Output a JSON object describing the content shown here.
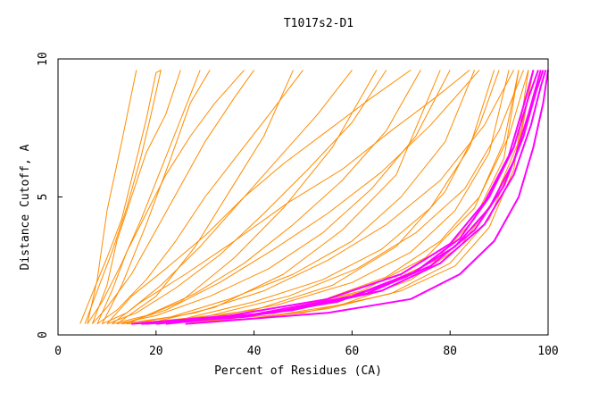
{
  "chart_data": {
    "type": "line",
    "title": "T1017s2-D1",
    "xlabel": "Percent of Residues (CA)",
    "ylabel": "Distance Cutoff, A",
    "xlim": [
      0,
      100
    ],
    "ylim": [
      0,
      10
    ],
    "x_ticks": [
      "0",
      "20",
      "40",
      "60",
      "80",
      "100"
    ],
    "y_ticks": [
      "0",
      "5",
      "10"
    ],
    "grid": false,
    "legend": "none",
    "colors": {
      "orange": "#ff8c00",
      "magenta": "#ff00ff",
      "frame": "#000000"
    },
    "orange_series": [
      {
        "points": [
          [
            4.5,
            0.4
          ],
          [
            7,
            1.5
          ],
          [
            10,
            2.8
          ],
          [
            13,
            4.2
          ],
          [
            15.5,
            6
          ],
          [
            18,
            7.8
          ],
          [
            20,
            9.5
          ],
          [
            21,
            9.6
          ]
        ]
      },
      {
        "points": [
          [
            5.5,
            0.4
          ],
          [
            8,
            1.6
          ],
          [
            11,
            3
          ],
          [
            14,
            4.6
          ],
          [
            17,
            6.5
          ],
          [
            19,
            8
          ],
          [
            21,
            9.6
          ]
        ]
      },
      {
        "points": [
          [
            6,
            0.4
          ],
          [
            9,
            1.2
          ],
          [
            13,
            2.6
          ],
          [
            17,
            4.2
          ],
          [
            21,
            6
          ],
          [
            25,
            7.8
          ],
          [
            29,
            9.6
          ]
        ]
      },
      {
        "points": [
          [
            7,
            0.4
          ],
          [
            10,
            1
          ],
          [
            15,
            2.2
          ],
          [
            20,
            3.8
          ],
          [
            25,
            5.4
          ],
          [
            30,
            7
          ],
          [
            36,
            8.6
          ],
          [
            40,
            9.6
          ]
        ]
      },
      {
        "points": [
          [
            8,
            0.4
          ],
          [
            12,
            0.9
          ],
          [
            18,
            2
          ],
          [
            24,
            3.4
          ],
          [
            30,
            5
          ],
          [
            37,
            6.6
          ],
          [
            44,
            8.2
          ],
          [
            50,
            9.6
          ]
        ]
      },
      {
        "points": [
          [
            9,
            0.4
          ],
          [
            14,
            0.8
          ],
          [
            21,
            1.8
          ],
          [
            29,
            3.2
          ],
          [
            37,
            4.8
          ],
          [
            45,
            6.4
          ],
          [
            53,
            8
          ],
          [
            60,
            9.6
          ]
        ]
      },
      {
        "points": [
          [
            10,
            0.4
          ],
          [
            16,
            0.8
          ],
          [
            24,
            1.7
          ],
          [
            33,
            2.9
          ],
          [
            42,
            4.4
          ],
          [
            51,
            6
          ],
          [
            60,
            7.7
          ],
          [
            67,
            9.6
          ]
        ]
      },
      {
        "points": [
          [
            11,
            0.4
          ],
          [
            18,
            0.7
          ],
          [
            28,
            1.5
          ],
          [
            38,
            2.6
          ],
          [
            48,
            4
          ],
          [
            58,
            5.6
          ],
          [
            67,
            7.4
          ],
          [
            74,
            9.6
          ]
        ]
      },
      {
        "points": [
          [
            12,
            0.4
          ],
          [
            20,
            0.7
          ],
          [
            31,
            1.4
          ],
          [
            43,
            2.4
          ],
          [
            54,
            3.7
          ],
          [
            64,
            5.3
          ],
          [
            73,
            7.2
          ],
          [
            80,
            9.6
          ]
        ]
      },
      {
        "points": [
          [
            13,
            0.4
          ],
          [
            23,
            0.65
          ],
          [
            35,
            1.3
          ],
          [
            48,
            2.2
          ],
          [
            60,
            3.4
          ],
          [
            70,
            5
          ],
          [
            79,
            7
          ],
          [
            85,
            9.6
          ]
        ]
      },
      {
        "points": [
          [
            14,
            0.4
          ],
          [
            26,
            0.6
          ],
          [
            40,
            1.2
          ],
          [
            54,
            2
          ],
          [
            66,
            3.1
          ],
          [
            76,
            4.6
          ],
          [
            84,
            6.8
          ],
          [
            89,
            9.6
          ]
        ]
      },
      {
        "points": [
          [
            15,
            0.4
          ],
          [
            30,
            0.6
          ],
          [
            45,
            1.1
          ],
          [
            60,
            1.9
          ],
          [
            72,
            3
          ],
          [
            81,
            4.5
          ],
          [
            88,
            6.6
          ],
          [
            92,
            9.6
          ]
        ]
      },
      {
        "points": [
          [
            16,
            0.4
          ],
          [
            34,
            0.55
          ],
          [
            50,
            1
          ],
          [
            65,
            1.7
          ],
          [
            77,
            2.7
          ],
          [
            85,
            4.2
          ],
          [
            91,
            6.4
          ],
          [
            94,
            9.6
          ]
        ]
      },
      {
        "points": [
          [
            17,
            0.4
          ],
          [
            38,
            0.55
          ],
          [
            55,
            0.95
          ],
          [
            70,
            1.6
          ],
          [
            81,
            2.5
          ],
          [
            88,
            3.9
          ],
          [
            93,
            6
          ],
          [
            96,
            9.6
          ]
        ]
      },
      {
        "points": [
          [
            6,
            0.4
          ],
          [
            8,
            2
          ],
          [
            10,
            4.5
          ],
          [
            13,
            7
          ],
          [
            16,
            9.6
          ]
        ]
      },
      {
        "points": [
          [
            9,
            0.4
          ],
          [
            13,
            1.8
          ],
          [
            18,
            4
          ],
          [
            23,
            6.4
          ],
          [
            27,
            8.4
          ],
          [
            31,
            9.6
          ]
        ]
      },
      {
        "points": [
          [
            12,
            0.4
          ],
          [
            20,
            1.4
          ],
          [
            28,
            3.2
          ],
          [
            35,
            5.2
          ],
          [
            42,
            7.2
          ],
          [
            48,
            9.6
          ]
        ]
      },
      {
        "points": [
          [
            14,
            0.4
          ],
          [
            25,
            1.2
          ],
          [
            36,
            2.8
          ],
          [
            46,
            4.6
          ],
          [
            56,
            6.8
          ],
          [
            65,
            9.6
          ]
        ]
      },
      {
        "points": [
          [
            18,
            0.4
          ],
          [
            32,
            1
          ],
          [
            46,
            2.2
          ],
          [
            58,
            3.8
          ],
          [
            69,
            5.8
          ],
          [
            78,
            9.6
          ]
        ]
      },
      {
        "points": [
          [
            20,
            0.45
          ],
          [
            40,
            0.9
          ],
          [
            56,
            1.8
          ],
          [
            69,
            3.2
          ],
          [
            79,
            5.2
          ],
          [
            86,
            7.6
          ],
          [
            90,
            9.6
          ]
        ]
      },
      {
        "points": [
          [
            22,
            0.45
          ],
          [
            44,
            0.8
          ],
          [
            62,
            1.6
          ],
          [
            75,
            2.8
          ],
          [
            85,
            4.6
          ],
          [
            91,
            7
          ],
          [
            94,
            9.6
          ]
        ]
      },
      {
        "points": [
          [
            24,
            0.45
          ],
          [
            50,
            0.8
          ],
          [
            68,
            1.5
          ],
          [
            80,
            2.6
          ],
          [
            88,
            4.2
          ],
          [
            94,
            6.8
          ],
          [
            97,
            9.6
          ]
        ]
      },
      {
        "points": [
          [
            10,
            0.4
          ],
          [
            15,
            1.4
          ],
          [
            22,
            2.4
          ],
          [
            30,
            3.6
          ],
          [
            38,
            5
          ],
          [
            46,
            6.2
          ],
          [
            55,
            7.4
          ],
          [
            64,
            8.6
          ],
          [
            72,
            9.6
          ]
        ]
      },
      {
        "points": [
          [
            11,
            0.4
          ],
          [
            17,
            1.2
          ],
          [
            26,
            2.2
          ],
          [
            36,
            3.4
          ],
          [
            47,
            4.8
          ],
          [
            58,
            6
          ],
          [
            68,
            7.4
          ],
          [
            77,
            8.6
          ],
          [
            84,
            9.6
          ]
        ]
      },
      {
        "points": [
          [
            8,
            0.4
          ],
          [
            11,
            1.6
          ],
          [
            14,
            3
          ],
          [
            18,
            4.4
          ],
          [
            22,
            5.8
          ],
          [
            27,
            7.2
          ],
          [
            32,
            8.4
          ],
          [
            38,
            9.6
          ]
        ]
      },
      {
        "points": [
          [
            7,
            0.4
          ],
          [
            10,
            1.8
          ],
          [
            12,
            3.4
          ],
          [
            15,
            5
          ],
          [
            18,
            6.6
          ],
          [
            22,
            8
          ],
          [
            25,
            9.6
          ]
        ]
      },
      {
        "points": [
          [
            13,
            0.4
          ],
          [
            22,
            0.9
          ],
          [
            33,
            1.9
          ],
          [
            44,
            3.1
          ],
          [
            55,
            4.4
          ],
          [
            66,
            5.9
          ],
          [
            76,
            7.6
          ],
          [
            86,
            9.6
          ]
        ]
      },
      {
        "points": [
          [
            15,
            0.4
          ],
          [
            28,
            0.8
          ],
          [
            42,
            1.6
          ],
          [
            55,
            2.7
          ],
          [
            67,
            4
          ],
          [
            78,
            5.6
          ],
          [
            87,
            7.6
          ],
          [
            93,
            9.6
          ]
        ]
      },
      {
        "points": [
          [
            16,
            0.4
          ],
          [
            31,
            0.7
          ],
          [
            47,
            1.4
          ],
          [
            61,
            2.4
          ],
          [
            73,
            3.7
          ],
          [
            83,
            5.3
          ],
          [
            90,
            7.4
          ],
          [
            95,
            9.6
          ]
        ]
      },
      {
        "points": [
          [
            18,
            0.4
          ],
          [
            36,
            0.6
          ],
          [
            53,
            1.2
          ],
          [
            67,
            2.1
          ],
          [
            78,
            3.4
          ],
          [
            86,
            5
          ],
          [
            92,
            7.2
          ],
          [
            96,
            9.6
          ]
        ]
      },
      {
        "points": [
          [
            19,
            0.4
          ],
          [
            40,
            0.6
          ],
          [
            58,
            1.1
          ],
          [
            72,
            2
          ],
          [
            82,
            3.2
          ],
          [
            89,
            4.9
          ],
          [
            94,
            7
          ],
          [
            97,
            9.6
          ]
        ]
      }
    ],
    "magenta_series": [
      {
        "points": [
          [
            15,
            0.4
          ],
          [
            35,
            0.7
          ],
          [
            55,
            1.3
          ],
          [
            70,
            2.2
          ],
          [
            80,
            3.3
          ],
          [
            87,
            4.8
          ],
          [
            92,
            6.5
          ],
          [
            95,
            8.3
          ],
          [
            97,
            9.6
          ]
        ]
      },
      {
        "points": [
          [
            18,
            0.4
          ],
          [
            40,
            0.75
          ],
          [
            60,
            1.4
          ],
          [
            73,
            2.3
          ],
          [
            82,
            3.5
          ],
          [
            88,
            5
          ],
          [
            93,
            6.8
          ],
          [
            96,
            8.6
          ],
          [
            98,
            9.6
          ]
        ]
      },
      {
        "points": [
          [
            20,
            0.4
          ],
          [
            44,
            0.8
          ],
          [
            63,
            1.5
          ],
          [
            76,
            2.5
          ],
          [
            85,
            3.8
          ],
          [
            91,
            5.4
          ],
          [
            95,
            7.2
          ],
          [
            97.5,
            8.8
          ],
          [
            99,
            9.6
          ]
        ]
      },
      {
        "points": [
          [
            22,
            0.4
          ],
          [
            48,
            0.9
          ],
          [
            66,
            1.6
          ],
          [
            78,
            2.6
          ],
          [
            87,
            4
          ],
          [
            93,
            5.8
          ],
          [
            96.5,
            7.6
          ],
          [
            98.5,
            9
          ],
          [
            99.5,
            9.6
          ]
        ]
      },
      {
        "points": [
          [
            26,
            0.4
          ],
          [
            55,
            0.8
          ],
          [
            72,
            1.3
          ],
          [
            82,
            2.2
          ],
          [
            89,
            3.4
          ],
          [
            94,
            5
          ],
          [
            97,
            6.8
          ],
          [
            99,
            8.4
          ],
          [
            100,
            9.6
          ]
        ]
      },
      {
        "points": [
          [
            17,
            0.4
          ],
          [
            38,
            0.65
          ],
          [
            57,
            1.2
          ],
          [
            71,
            2.1
          ],
          [
            81,
            3.2
          ],
          [
            88,
            4.6
          ],
          [
            93,
            6.3
          ],
          [
            96,
            8
          ],
          [
            98.5,
            9.6
          ]
        ]
      }
    ]
  }
}
